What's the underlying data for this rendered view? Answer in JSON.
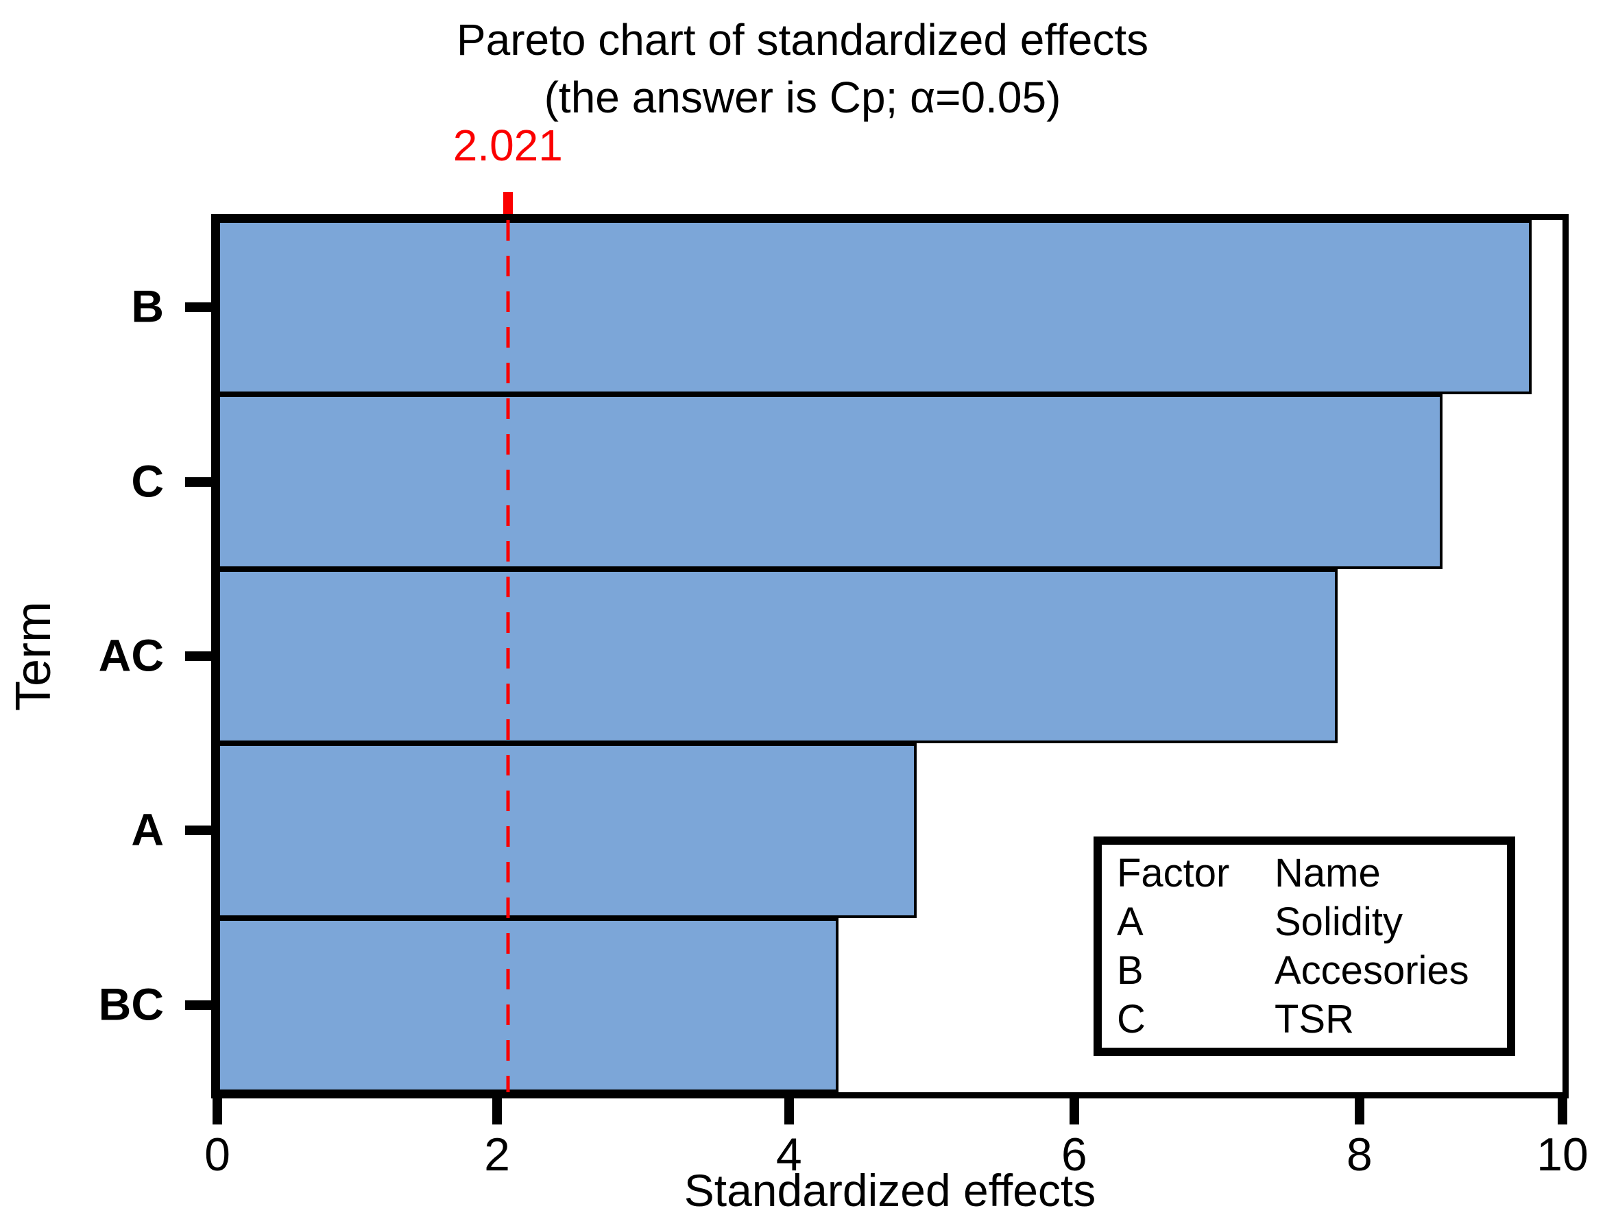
{
  "title": {
    "line1": "Pareto chart of standardized effects",
    "line2": "(the answer is Cp; α=0.05)"
  },
  "axes": {
    "x_label": "Standardized effects",
    "y_label": "Term",
    "x_ticks": [
      "0",
      "2",
      "4",
      "6",
      "8",
      "10"
    ]
  },
  "reference_line": {
    "label": "2.021"
  },
  "legend": {
    "headers": [
      "Factor",
      "Name"
    ],
    "rows": [
      [
        "A",
        "Solidity"
      ],
      [
        "B",
        "Accesories"
      ],
      [
        "C",
        "TSR"
      ]
    ]
  },
  "colors": {
    "bar_fill": "#7ca6d8",
    "bar_border": "#000000",
    "frame": "#000000",
    "reference": "#fb0000"
  },
  "chart_data": {
    "type": "bar",
    "orientation": "horizontal",
    "title": "Pareto chart of standardized effects (the answer is Cp; α=0.05)",
    "xlabel": "Standardized effects",
    "ylabel": "Term",
    "categories": [
      "B",
      "C",
      "AC",
      "A",
      "BC"
    ],
    "values": [
      9.7,
      8.8,
      7.9,
      4.9,
      4.3
    ],
    "xlim": [
      0,
      10
    ],
    "reference_line_value": 2.021,
    "alpha": 0.05,
    "grid": false,
    "legend_position": "lower-right",
    "render": {
      "bar_pct": [
        97.7,
        91.1,
        83.3,
        52.0,
        46.2
      ],
      "xtick_pct": [
        0,
        20.8,
        42.5,
        63.7,
        84.9,
        100
      ],
      "refline_pct": 21.6
    }
  }
}
